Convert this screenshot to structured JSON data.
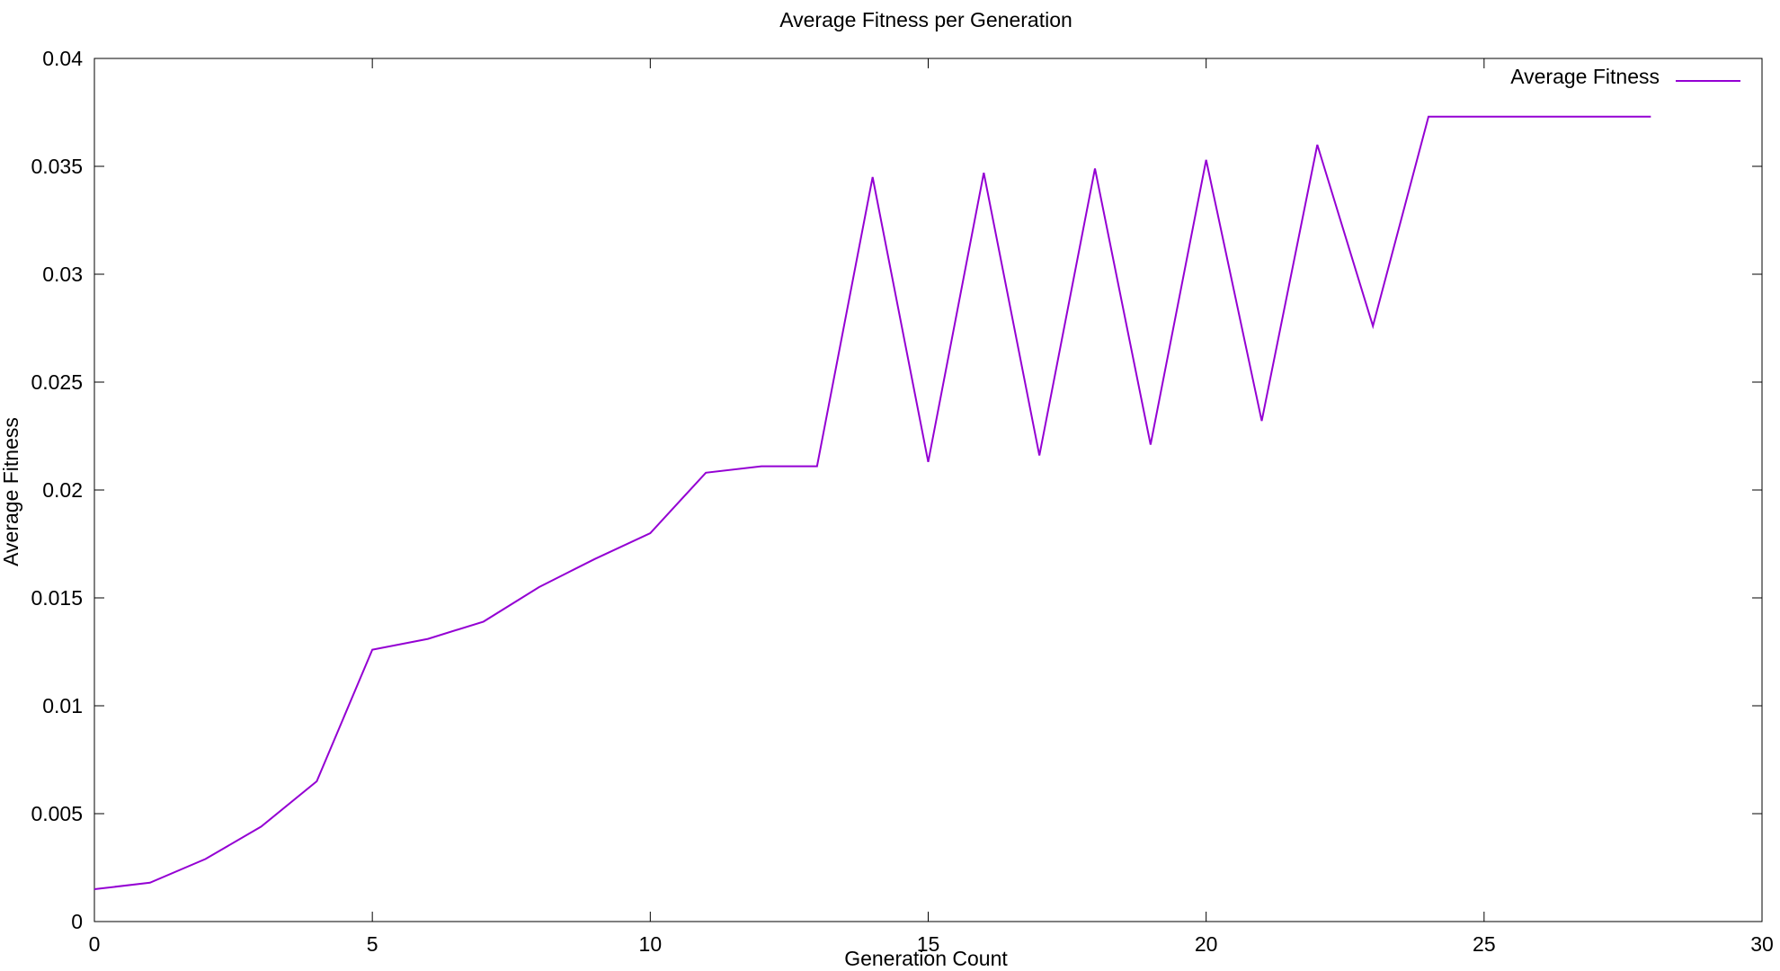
{
  "chart_data": {
    "type": "line",
    "title": "Average Fitness per Generation",
    "xlabel": "Generation Count",
    "ylabel": "Average Fitness",
    "xlim": [
      0,
      30
    ],
    "ylim": [
      0,
      0.04
    ],
    "x_ticks": [
      "0",
      "5",
      "10",
      "15",
      "20",
      "25",
      "30"
    ],
    "y_ticks": [
      "0",
      "0.005",
      "0.01",
      "0.015",
      "0.02",
      "0.025",
      "0.03",
      "0.035",
      "0.04"
    ],
    "grid": false,
    "legend_position": "top-right",
    "series": [
      {
        "name": "Average Fitness",
        "color": "#9400d3",
        "x": [
          0,
          1,
          2,
          3,
          4,
          5,
          6,
          7,
          8,
          9,
          10,
          11,
          12,
          13,
          14,
          15,
          16,
          17,
          18,
          19,
          20,
          21,
          22,
          23,
          24,
          25,
          26,
          27,
          28
        ],
        "y": [
          0.0015,
          0.0018,
          0.0029,
          0.0044,
          0.0065,
          0.0126,
          0.0131,
          0.0139,
          0.0155,
          0.0168,
          0.018,
          0.0208,
          0.0211,
          0.0211,
          0.0345,
          0.0213,
          0.0347,
          0.0216,
          0.0349,
          0.0221,
          0.0353,
          0.0232,
          0.036,
          0.0276,
          0.0373,
          0.0373,
          0.0373,
          0.0373,
          0.0373
        ]
      }
    ]
  }
}
